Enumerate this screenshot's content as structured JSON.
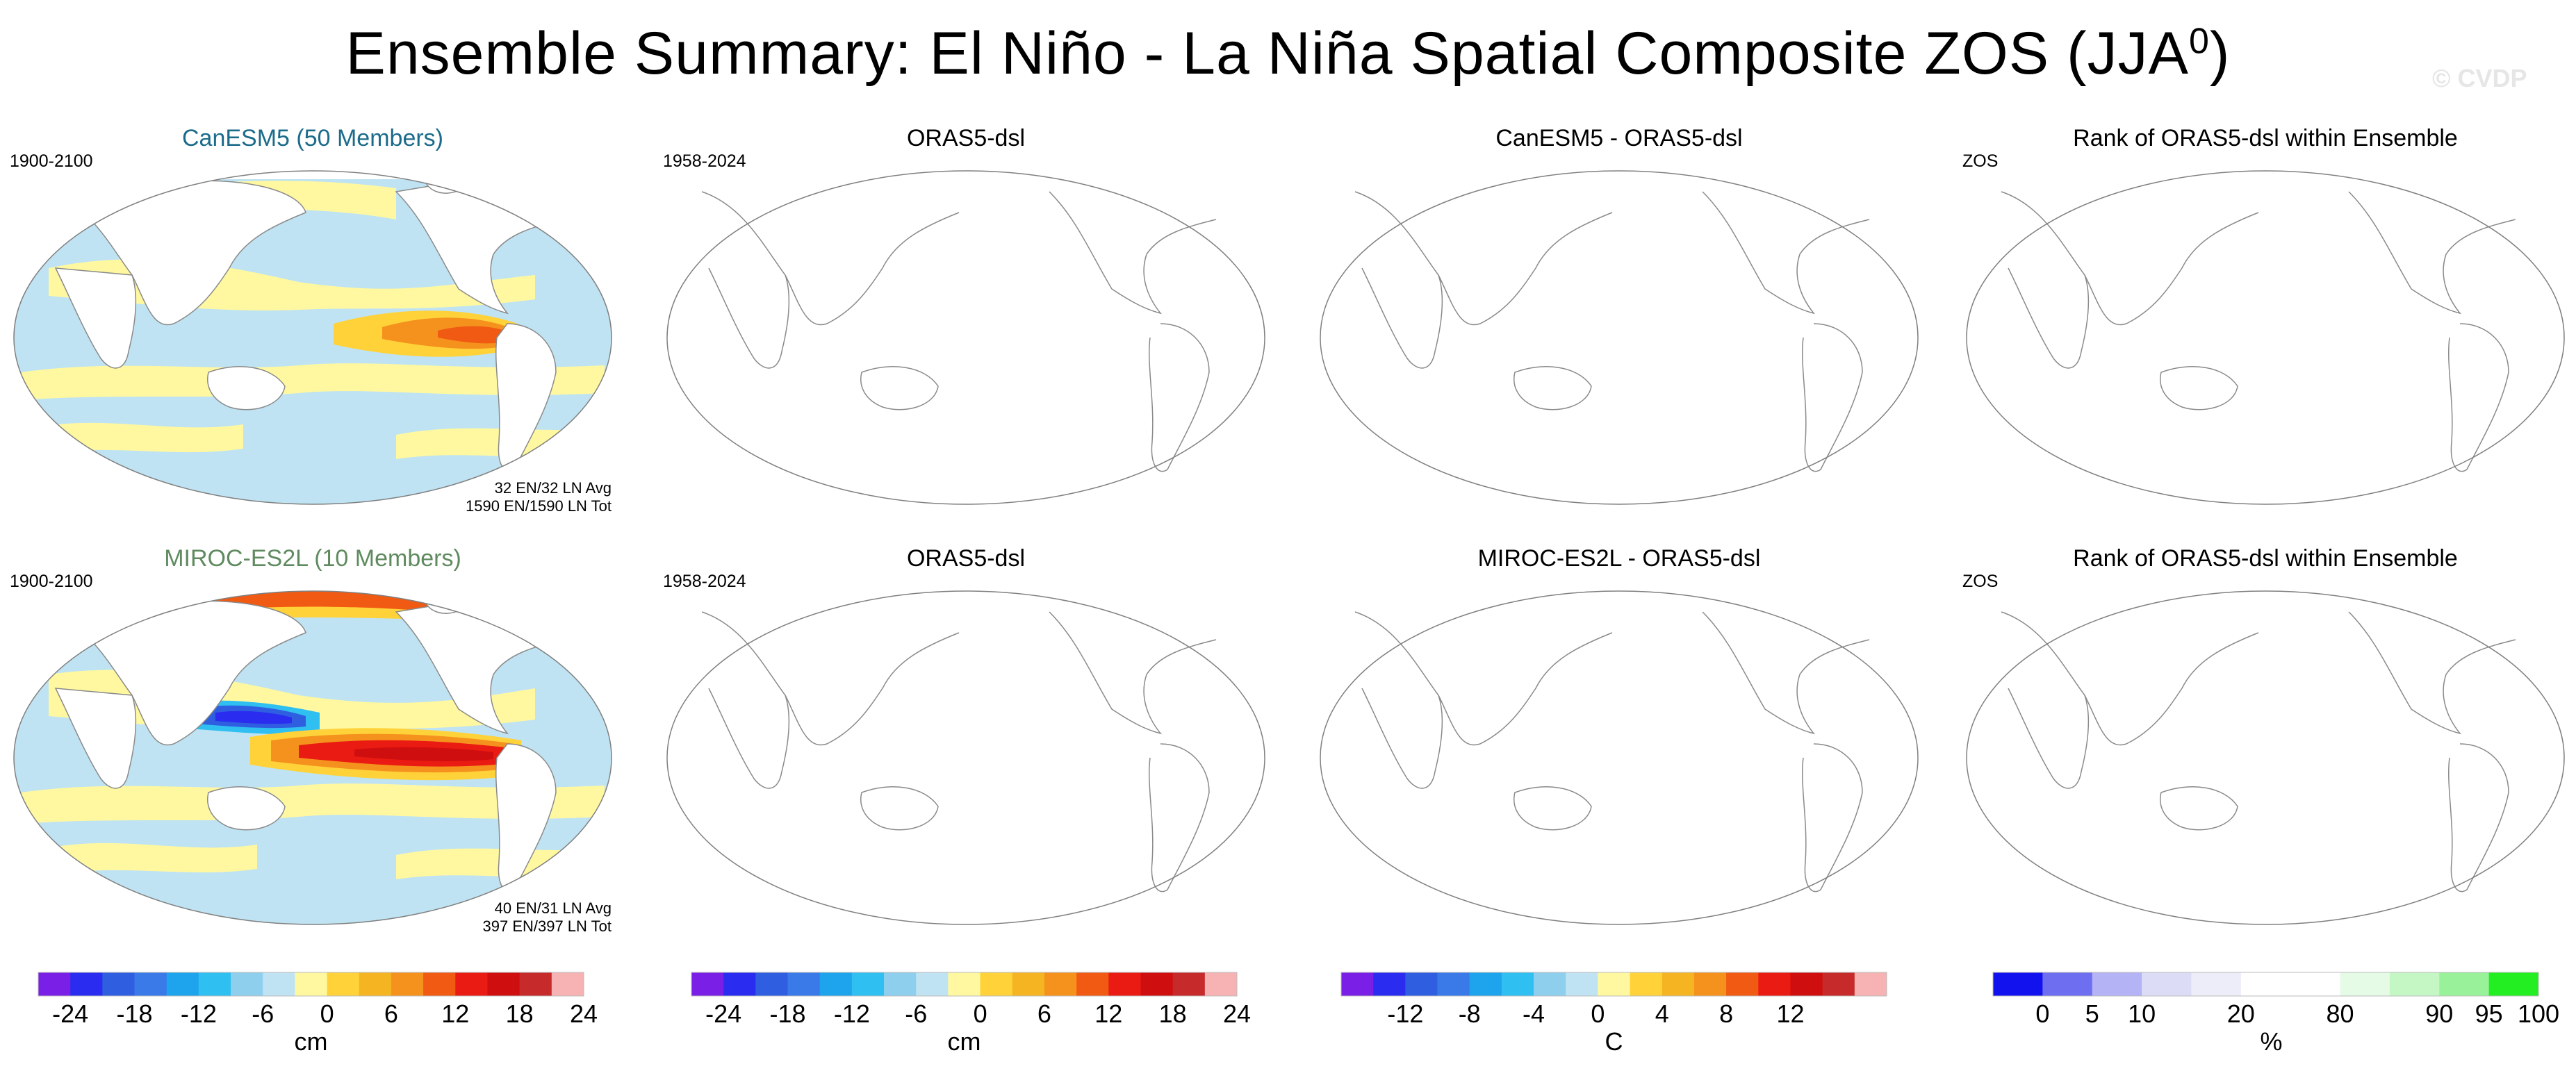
{
  "title": {
    "main": "Ensemble Summary: El Niño - La Niña Spatial Composite ZOS (JJA",
    "superscript": "0",
    "close": ")"
  },
  "watermark": "© CVDP",
  "rows": [
    {
      "model_title": "CanESM5 (50 Members)",
      "model_title_color": "#1b6b8a",
      "model_period": "1900-2100",
      "stats_line1": "32 EN/32 LN Avg",
      "stats_line2": "1590 EN/1590 LN Tot",
      "obs_title": "ORAS5-dsl",
      "obs_period": "1958-2024",
      "diff_title": "CanESM5 - ORAS5-dsl",
      "rank_title": "Rank of ORAS5-dsl within Ensemble",
      "rank_var": "ZOS"
    },
    {
      "model_title": "MIROC-ES2L (10 Members)",
      "model_title_color": "#5f8a5f",
      "model_period": "1900-2100",
      "stats_line1": "40 EN/31 LN Avg",
      "stats_line2": "397 EN/397 LN Tot",
      "obs_title": "ORAS5-dsl",
      "obs_period": "1958-2024",
      "diff_title": "MIROC-ES2L - ORAS5-dsl",
      "rank_title": "Rank of ORAS5-dsl within Ensemble",
      "rank_var": "ZOS"
    }
  ],
  "colorbars": [
    {
      "colors": [
        "#7a1fe6",
        "#2a2df0",
        "#2f5fe0",
        "#3a7ae8",
        "#1ea4ec",
        "#2fbff0",
        "#8fcfee",
        "#bfe3f2",
        "#fff8a0",
        "#ffd23a",
        "#f5b421",
        "#f5921d",
        "#f05a12",
        "#ea1b12",
        "#cf0f0f",
        "#c62a2a",
        "#f7b3b3"
      ],
      "labels": [
        "-24",
        "-18",
        "-12",
        "-6",
        "0",
        "6",
        "12",
        "18",
        "24"
      ],
      "label_positions": [
        1,
        3,
        5,
        7,
        9,
        11,
        13,
        15,
        17
      ],
      "unit": "cm"
    },
    {
      "colors": [
        "#7a1fe6",
        "#2a2df0",
        "#2f5fe0",
        "#3a7ae8",
        "#1ea4ec",
        "#2fbff0",
        "#8fcfee",
        "#bfe3f2",
        "#fff8a0",
        "#ffd23a",
        "#f5b421",
        "#f5921d",
        "#f05a12",
        "#ea1b12",
        "#cf0f0f",
        "#c62a2a",
        "#f7b3b3"
      ],
      "labels": [
        "-24",
        "-18",
        "-12",
        "-6",
        "0",
        "6",
        "12",
        "18",
        "24"
      ],
      "label_positions": [
        1,
        3,
        5,
        7,
        9,
        11,
        13,
        15,
        17
      ],
      "unit": "cm"
    },
    {
      "colors": [
        "#7a1fe6",
        "#2a2df0",
        "#2f5fe0",
        "#3a7ae8",
        "#1ea4ec",
        "#2fbff0",
        "#8fcfee",
        "#bfe3f2",
        "#fff8a0",
        "#ffd23a",
        "#f5b421",
        "#f5921d",
        "#f05a12",
        "#ea1b12",
        "#cf0f0f",
        "#c62a2a",
        "#f7b3b3"
      ],
      "labels": [
        "-12",
        "-8",
        "-4",
        "0",
        "4",
        "8",
        "12"
      ],
      "label_positions": [
        2,
        4,
        6,
        8,
        10,
        12,
        14
      ],
      "unit": "C"
    },
    {
      "colors": [
        "#1212ee",
        "#6e6ef0",
        "#b3b3f5",
        "#dcdcf7",
        "#ededfa",
        "#ffffff",
        "#ffffff",
        "#e6fbe6",
        "#c4f7c4",
        "#99f299",
        "#22ee22"
      ],
      "labels": [
        "0",
        "5",
        "10",
        "20",
        "80",
        "90",
        "95",
        "100"
      ],
      "label_positions": [
        1,
        2,
        3,
        5,
        7,
        9,
        10,
        11
      ],
      "unit": "%"
    }
  ]
}
